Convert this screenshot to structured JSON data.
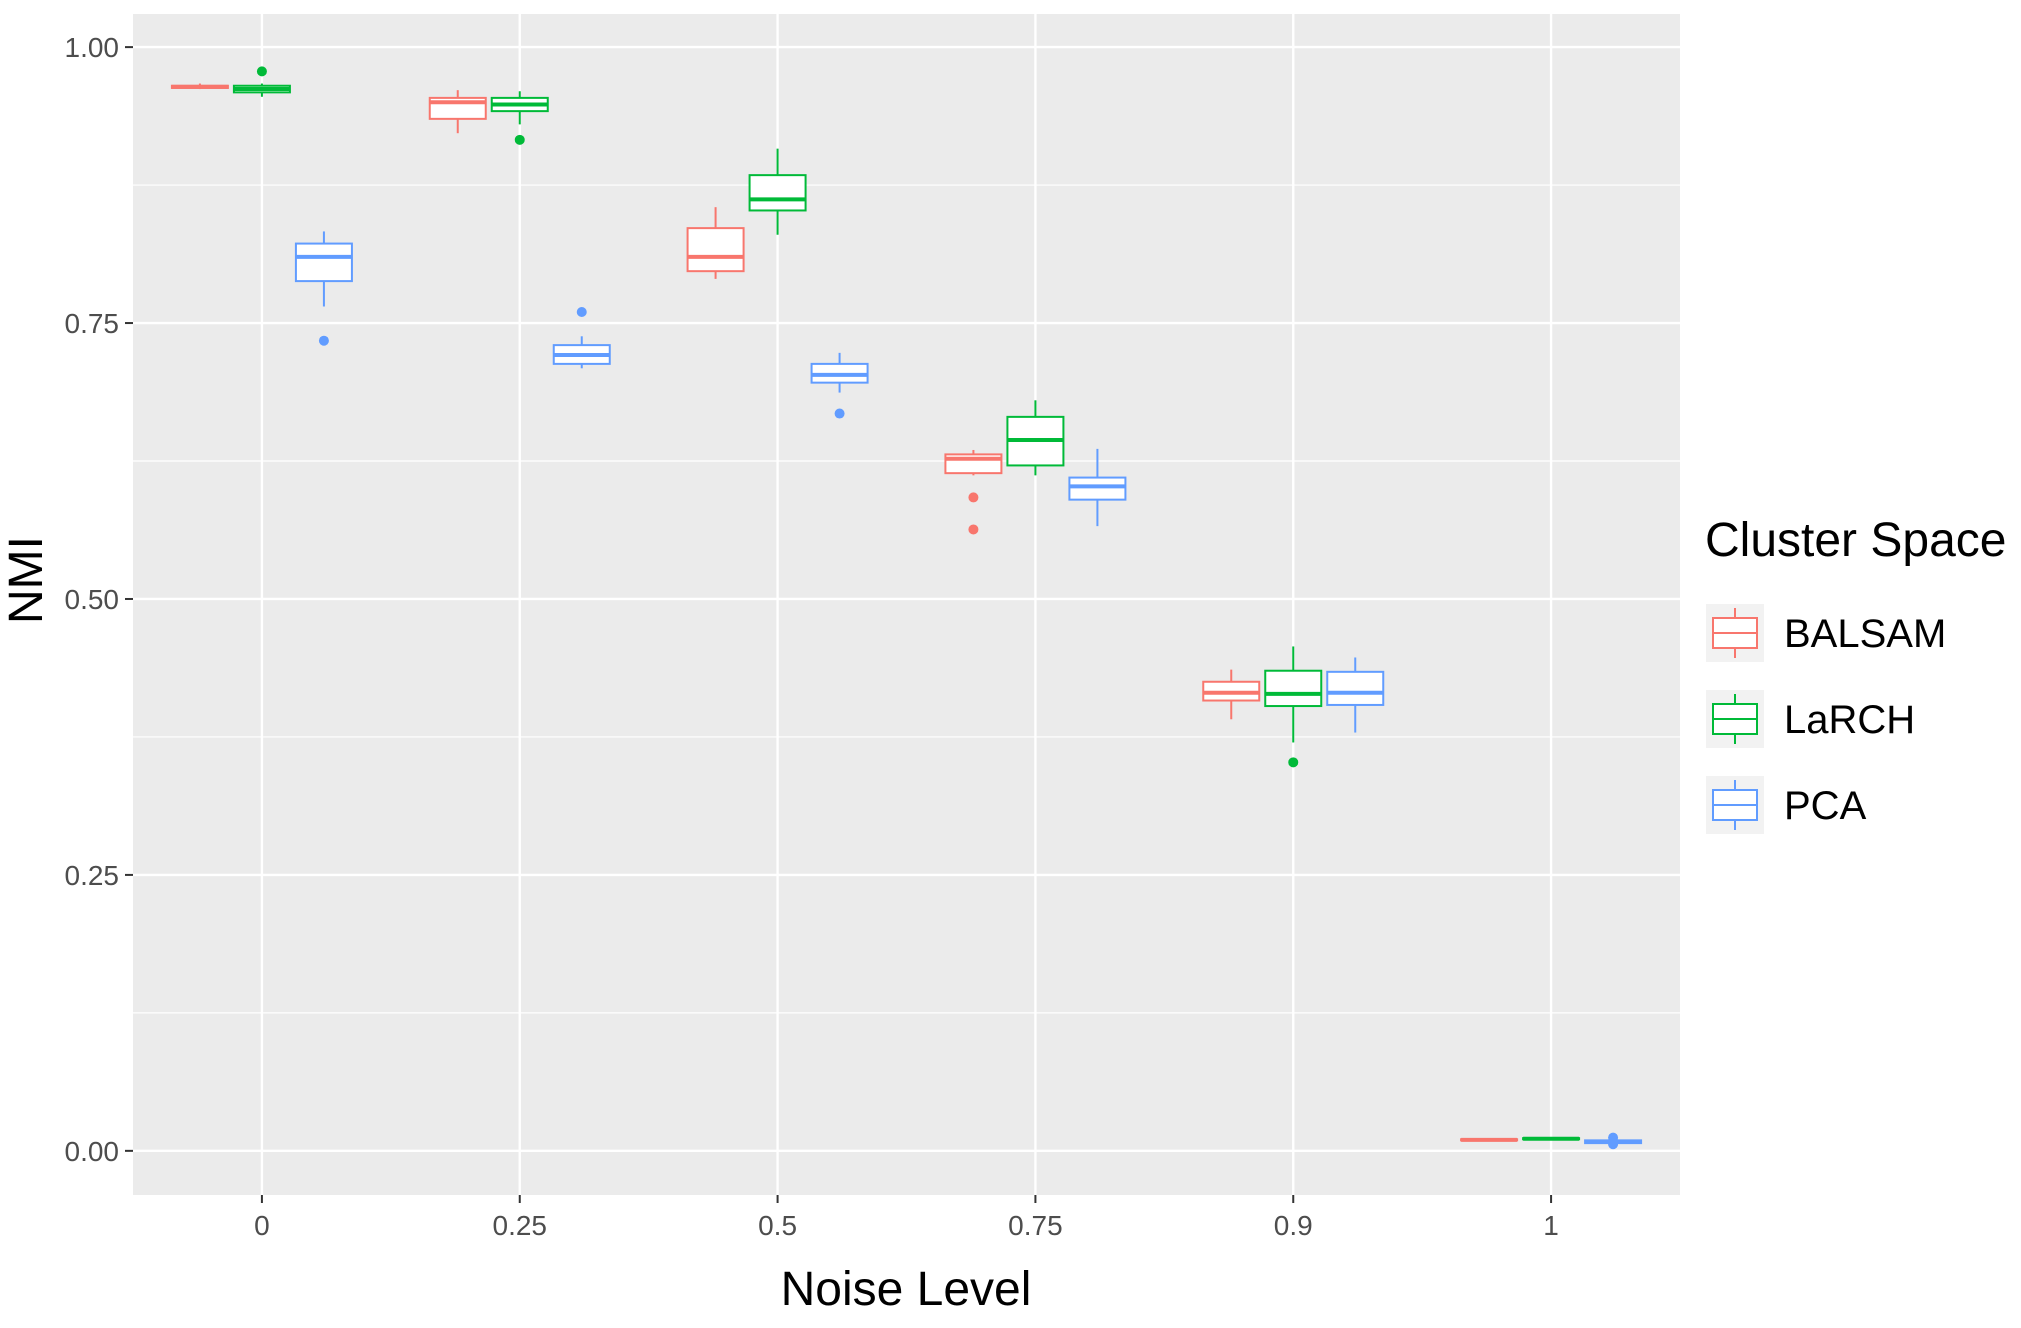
{
  "chart_data": {
    "type": "box",
    "xlabel": "Noise Level",
    "ylabel": "NMI",
    "categories": [
      "0",
      "0.25",
      "0.5",
      "0.75",
      "0.9",
      "1"
    ],
    "ylim": [
      -0.04,
      1.03
    ],
    "yticks": [
      0.0,
      0.25,
      0.5,
      0.75,
      1.0
    ],
    "ytick_labels": [
      "0.00",
      "0.25",
      "0.50",
      "0.75",
      "1.00"
    ],
    "grid": true,
    "legend": {
      "title": "Cluster Space",
      "position": "right"
    },
    "series": [
      {
        "name": "BALSAM",
        "color": "#F8766D",
        "boxes": [
          {
            "min": 0.962,
            "q1": 0.963,
            "median": 0.964,
            "q3": 0.965,
            "max": 0.967,
            "outliers": []
          },
          {
            "min": 0.922,
            "q1": 0.935,
            "median": 0.95,
            "q3": 0.954,
            "max": 0.961,
            "outliers": []
          },
          {
            "min": 0.79,
            "q1": 0.797,
            "median": 0.81,
            "q3": 0.836,
            "max": 0.855,
            "outliers": []
          },
          {
            "min": 0.612,
            "q1": 0.614,
            "median": 0.627,
            "q3": 0.631,
            "max": 0.635,
            "outliers": [
              0.592,
              0.563
            ]
          },
          {
            "min": 0.391,
            "q1": 0.408,
            "median": 0.415,
            "q3": 0.425,
            "max": 0.436,
            "outliers": []
          },
          {
            "min": 0.009,
            "q1": 0.0095,
            "median": 0.01,
            "q3": 0.0105,
            "max": 0.011,
            "outliers": []
          }
        ]
      },
      {
        "name": "LaRCH",
        "color": "#00BA38",
        "boxes": [
          {
            "min": 0.955,
            "q1": 0.959,
            "median": 0.962,
            "q3": 0.965,
            "max": 0.967,
            "outliers": [
              0.978
            ]
          },
          {
            "min": 0.93,
            "q1": 0.942,
            "median": 0.948,
            "q3": 0.954,
            "max": 0.96,
            "outliers": [
              0.916
            ]
          },
          {
            "min": 0.83,
            "q1": 0.852,
            "median": 0.862,
            "q3": 0.884,
            "max": 0.908,
            "outliers": []
          },
          {
            "min": 0.612,
            "q1": 0.621,
            "median": 0.644,
            "q3": 0.665,
            "max": 0.68,
            "outliers": []
          },
          {
            "min": 0.37,
            "q1": 0.403,
            "median": 0.414,
            "q3": 0.435,
            "max": 0.457,
            "outliers": [
              0.352
            ]
          },
          {
            "min": 0.01,
            "q1": 0.0105,
            "median": 0.011,
            "q3": 0.0115,
            "max": 0.012,
            "outliers": []
          }
        ]
      },
      {
        "name": "PCA",
        "color": "#619CFF",
        "boxes": [
          {
            "min": 0.765,
            "q1": 0.788,
            "median": 0.81,
            "q3": 0.822,
            "max": 0.833,
            "outliers": [
              0.734
            ]
          },
          {
            "min": 0.709,
            "q1": 0.713,
            "median": 0.721,
            "q3": 0.73,
            "max": 0.738,
            "outliers": [
              0.76
            ]
          },
          {
            "min": 0.687,
            "q1": 0.696,
            "median": 0.703,
            "q3": 0.713,
            "max": 0.723,
            "outliers": [
              0.668
            ]
          },
          {
            "min": 0.566,
            "q1": 0.59,
            "median": 0.602,
            "q3": 0.61,
            "max": 0.636,
            "outliers": []
          },
          {
            "min": 0.379,
            "q1": 0.404,
            "median": 0.415,
            "q3": 0.434,
            "max": 0.447,
            "outliers": []
          },
          {
            "min": 0.006,
            "q1": 0.007,
            "median": 0.008,
            "q3": 0.0095,
            "max": 0.011,
            "outliers": [
              0.012,
              0.006
            ]
          }
        ]
      }
    ]
  }
}
